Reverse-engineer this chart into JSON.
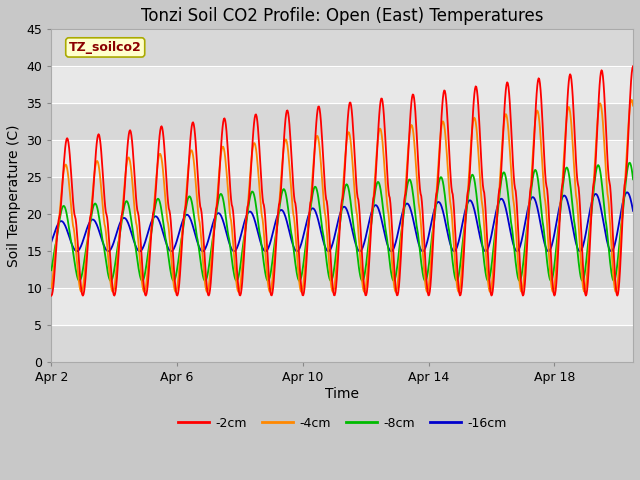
{
  "title": "Tonzi Soil CO2 Profile: Open (East) Temperatures",
  "xlabel": "Time",
  "ylabel": "Soil Temperature (C)",
  "ylim": [
    0,
    45
  ],
  "yticks": [
    0,
    5,
    10,
    15,
    20,
    25,
    30,
    35,
    40,
    45
  ],
  "xtick_positions": [
    2,
    6,
    10,
    14,
    18
  ],
  "xtick_labels": [
    "Apr 2",
    "Apr 6",
    "Apr 10",
    "Apr 14",
    "Apr 18"
  ],
  "annotation_text": "TZ_soilco2",
  "annotation_color": "#8B0000",
  "annotation_bg": "#FFFFCC",
  "legend_labels": [
    "-2cm",
    "-4cm",
    "-8cm",
    "-16cm"
  ],
  "legend_colors": [
    "#FF0000",
    "#FF8800",
    "#00BB00",
    "#0000CC"
  ],
  "line_colors": [
    "#FF0000",
    "#FF8800",
    "#00BB00",
    "#0000CC"
  ],
  "band_colors": [
    "#DCDCDC",
    "#EBEBEB"
  ],
  "title_fontsize": 12,
  "label_fontsize": 10,
  "tick_fontsize": 9
}
